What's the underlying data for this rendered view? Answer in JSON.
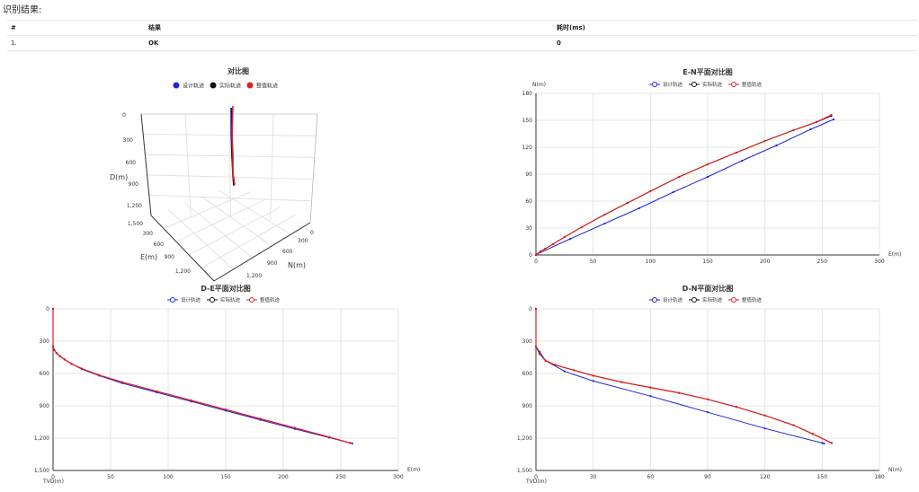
{
  "header": {
    "title": "识别结果:"
  },
  "table": {
    "columns": [
      "#",
      "结果",
      "耗时(ms)"
    ],
    "rows": [
      [
        "1.",
        "OK",
        "0"
      ]
    ]
  },
  "colors": {
    "design": "#2222dd",
    "actual": "#111111",
    "corrected": "#e02020"
  },
  "chart_data": [
    {
      "type": "line3d",
      "title": "对比图",
      "legend": [
        "设计轨迹",
        "实际轨迹",
        "整值轨迹"
      ],
      "axis_d": {
        "label": "D(m)",
        "ticks": [
          "0",
          "300",
          "600",
          "900",
          "1,200",
          "1,500"
        ]
      },
      "axis_e": {
        "label": "E(m)",
        "ticks": [
          "300",
          "600",
          "900",
          "1,200"
        ]
      },
      "axis_n": {
        "label": "N(m)",
        "ticks": [
          "0",
          "300",
          "600",
          "900",
          "1,200"
        ]
      }
    },
    {
      "type": "line",
      "title": "E-N平面对比图",
      "legend": [
        "设计轨迹",
        "实际轨迹",
        "整值轨迹"
      ],
      "xlabel": "E(m)",
      "ylabel": "N(m)",
      "xlim": [
        0,
        300
      ],
      "ylim": [
        0,
        180
      ],
      "xticks": [
        0,
        50,
        100,
        150,
        200,
        250,
        300
      ],
      "yticks": [
        0,
        30,
        60,
        90,
        120,
        150,
        180
      ],
      "series": [
        {
          "name": "设计轨迹",
          "x": [
            0,
            1,
            30,
            60,
            90,
            120,
            150,
            180,
            210,
            240,
            260
          ],
          "y": [
            0,
            1,
            18,
            35,
            52,
            70,
            87,
            105,
            122,
            140,
            151
          ]
        },
        {
          "name": "实际轨迹",
          "x": [
            0,
            1,
            4,
            8,
            15,
            25,
            40,
            60,
            80,
            100,
            125,
            150,
            175,
            200,
            225,
            245,
            258
          ],
          "y": [
            0,
            1,
            4,
            7,
            12,
            20,
            31,
            45,
            58,
            71,
            87,
            101,
            114,
            127,
            139,
            148,
            155
          ]
        },
        {
          "name": "整值轨迹",
          "x": [
            0,
            1,
            4,
            8,
            15,
            25,
            40,
            60,
            80,
            100,
            125,
            150,
            175,
            200,
            225,
            245,
            258
          ],
          "y": [
            0,
            1,
            4,
            7,
            12,
            20,
            31,
            45,
            58,
            71,
            87,
            101,
            114,
            127,
            139,
            148,
            156
          ]
        }
      ]
    },
    {
      "type": "line",
      "title": "D-E平面对比图",
      "legend": [
        "设计轨迹",
        "实际轨迹",
        "整值轨迹"
      ],
      "xlabel": "E(m)",
      "ylabel": "TVD(m)",
      "xlim": [
        0,
        300
      ],
      "ylim": [
        0,
        1500
      ],
      "y_inverted": true,
      "xticks": [
        0,
        50,
        100,
        150,
        200,
        250,
        300
      ],
      "yticks": [
        0,
        300,
        600,
        900,
        1200,
        1500
      ],
      "series": [
        {
          "name": "设计轨迹",
          "x": [
            0,
            0,
            1,
            3,
            6,
            10,
            16,
            25,
            40,
            60,
            90,
            120,
            150,
            180,
            210,
            240,
            260
          ],
          "y": [
            0,
            350,
            380,
            410,
            440,
            470,
            510,
            560,
            620,
            690,
            775,
            860,
            945,
            1030,
            1115,
            1195,
            1250
          ]
        },
        {
          "name": "实际轨迹",
          "x": [
            0,
            0,
            1,
            3,
            6,
            10,
            16,
            25,
            40,
            60,
            90,
            120,
            150,
            180,
            210,
            240,
            258
          ],
          "y": [
            0,
            350,
            380,
            410,
            440,
            470,
            510,
            555,
            615,
            680,
            765,
            850,
            935,
            1020,
            1105,
            1190,
            1245
          ]
        },
        {
          "name": "整值轨迹",
          "x": [
            0,
            0,
            1,
            3,
            6,
            10,
            16,
            25,
            40,
            60,
            90,
            120,
            150,
            180,
            210,
            240,
            258
          ],
          "y": [
            0,
            350,
            380,
            410,
            440,
            470,
            510,
            555,
            615,
            680,
            765,
            850,
            935,
            1020,
            1105,
            1190,
            1245
          ]
        }
      ]
    },
    {
      "type": "line",
      "title": "D-N平面对比图",
      "legend": [
        "设计轨迹",
        "实际轨迹",
        "整值轨迹"
      ],
      "xlabel": "N(m)",
      "ylabel": "TVD(m)",
      "xlim": [
        0,
        180
      ],
      "ylim": [
        0,
        1500
      ],
      "y_inverted": true,
      "xticks": [
        0,
        30,
        60,
        90,
        120,
        150,
        180
      ],
      "yticks": [
        0,
        300,
        600,
        900,
        1200,
        1500
      ],
      "series": [
        {
          "name": "设计轨迹",
          "x": [
            0,
            0,
            2,
            5,
            15,
            30,
            60,
            90,
            120,
            150,
            151
          ],
          "y": [
            0,
            350,
            400,
            480,
            580,
            670,
            810,
            960,
            1110,
            1245,
            1250
          ]
        },
        {
          "name": "实际轨迹",
          "x": [
            0,
            0,
            2,
            5,
            10,
            20,
            30,
            45,
            60,
            75,
            90,
            105,
            120,
            135,
            145,
            155
          ],
          "y": [
            0,
            350,
            420,
            480,
            520,
            570,
            620,
            680,
            730,
            780,
            840,
            910,
            990,
            1080,
            1160,
            1245
          ]
        },
        {
          "name": "整值轨迹",
          "x": [
            0,
            0,
            2,
            5,
            10,
            20,
            30,
            45,
            60,
            75,
            90,
            105,
            120,
            135,
            145,
            155
          ],
          "y": [
            0,
            350,
            420,
            480,
            520,
            570,
            620,
            680,
            730,
            780,
            840,
            910,
            990,
            1080,
            1160,
            1245
          ]
        }
      ]
    }
  ]
}
